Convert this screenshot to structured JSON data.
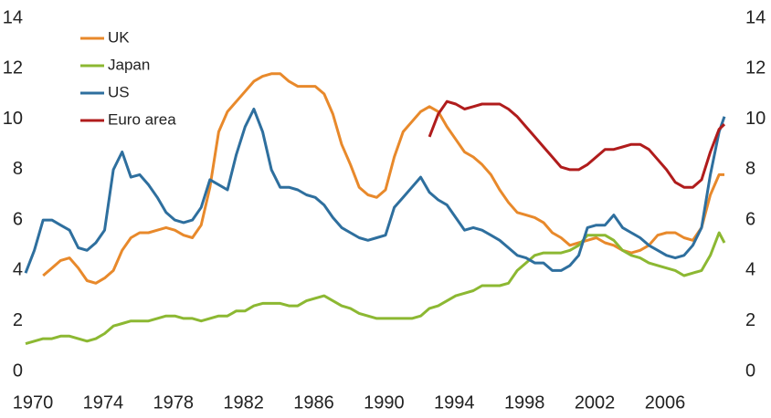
{
  "chart_data": {
    "type": "line",
    "x": [
      1970,
      1970.5,
      1971,
      1971.5,
      1972,
      1972.5,
      1973,
      1973.5,
      1974,
      1974.5,
      1975,
      1975.5,
      1976,
      1976.5,
      1977,
      1977.5,
      1978,
      1978.5,
      1979,
      1979.5,
      1980,
      1980.5,
      1981,
      1981.5,
      1982,
      1982.5,
      1983,
      1983.5,
      1984,
      1984.5,
      1985,
      1985.5,
      1986,
      1986.5,
      1987,
      1987.5,
      1988,
      1988.5,
      1989,
      1989.5,
      1990,
      1990.5,
      1991,
      1991.5,
      1992,
      1992.5,
      1993,
      1993.5,
      1994,
      1994.5,
      1995,
      1995.5,
      1996,
      1996.5,
      1997,
      1997.5,
      1998,
      1998.5,
      1999,
      1999.5,
      2000,
      2000.5,
      2001,
      2001.5,
      2002,
      2002.5,
      2003,
      2003.5,
      2004,
      2004.5,
      2005,
      2005.5,
      2006,
      2006.5,
      2007,
      2007.5,
      2008,
      2008.5,
      2009,
      2009.5,
      2009.8
    ],
    "series": [
      {
        "name": "UK",
        "color": "#e8892b",
        "values": [
          null,
          null,
          3.8,
          4.1,
          4.4,
          4.5,
          4.1,
          3.6,
          3.5,
          3.7,
          4.0,
          4.8,
          5.3,
          5.5,
          5.5,
          5.6,
          5.7,
          5.6,
          5.4,
          5.3,
          5.8,
          7.3,
          9.5,
          10.3,
          10.7,
          11.1,
          11.5,
          11.7,
          11.8,
          11.8,
          11.5,
          11.3,
          11.3,
          11.3,
          11.0,
          10.2,
          9.0,
          8.2,
          7.3,
          7.0,
          6.9,
          7.2,
          8.5,
          9.5,
          9.9,
          10.3,
          10.5,
          10.3,
          9.7,
          9.2,
          8.7,
          8.5,
          8.2,
          7.8,
          7.2,
          6.7,
          6.3,
          6.2,
          6.1,
          5.9,
          5.5,
          5.3,
          5.0,
          5.1,
          5.2,
          5.3,
          5.1,
          5.0,
          4.8,
          4.7,
          4.8,
          5.0,
          5.4,
          5.5,
          5.5,
          5.3,
          5.2,
          5.7,
          7.0,
          7.8,
          7.8
        ]
      },
      {
        "name": "Japan",
        "color": "#8cb832",
        "values": [
          1.1,
          1.2,
          1.3,
          1.3,
          1.4,
          1.4,
          1.3,
          1.2,
          1.3,
          1.5,
          1.8,
          1.9,
          2.0,
          2.0,
          2.0,
          2.1,
          2.2,
          2.2,
          2.1,
          2.1,
          2.0,
          2.1,
          2.2,
          2.2,
          2.4,
          2.4,
          2.6,
          2.7,
          2.7,
          2.7,
          2.6,
          2.6,
          2.8,
          2.9,
          3.0,
          2.8,
          2.6,
          2.5,
          2.3,
          2.2,
          2.1,
          2.1,
          2.1,
          2.1,
          2.1,
          2.2,
          2.5,
          2.6,
          2.8,
          3.0,
          3.1,
          3.2,
          3.4,
          3.4,
          3.4,
          3.5,
          4.0,
          4.3,
          4.6,
          4.7,
          4.7,
          4.7,
          4.8,
          5.0,
          5.4,
          5.4,
          5.4,
          5.2,
          4.8,
          4.6,
          4.5,
          4.3,
          4.2,
          4.1,
          4.0,
          3.8,
          3.9,
          4.0,
          4.6,
          5.5,
          5.1
        ]
      },
      {
        "name": "US",
        "color": "#2e6f9e",
        "values": [
          3.9,
          4.8,
          6.0,
          6.0,
          5.8,
          5.6,
          4.9,
          4.8,
          5.1,
          5.6,
          8.0,
          8.7,
          7.7,
          7.8,
          7.4,
          6.9,
          6.3,
          6.0,
          5.9,
          6.0,
          6.5,
          7.6,
          7.4,
          7.2,
          8.6,
          9.7,
          10.4,
          9.5,
          8.0,
          7.3,
          7.3,
          7.2,
          7.0,
          6.9,
          6.6,
          6.1,
          5.7,
          5.5,
          5.3,
          5.2,
          5.3,
          5.4,
          6.5,
          6.9,
          7.3,
          7.7,
          7.1,
          6.8,
          6.6,
          6.1,
          5.6,
          5.7,
          5.6,
          5.4,
          5.2,
          4.9,
          4.6,
          4.5,
          4.3,
          4.3,
          4.0,
          4.0,
          4.2,
          4.6,
          5.7,
          5.8,
          5.8,
          6.2,
          5.7,
          5.5,
          5.3,
          5.0,
          4.8,
          4.6,
          4.5,
          4.6,
          5.0,
          5.7,
          7.8,
          9.5,
          10.1
        ]
      },
      {
        "name": "Euro area",
        "color": "#b01c1c",
        "values": [
          null,
          null,
          null,
          null,
          null,
          null,
          null,
          null,
          null,
          null,
          null,
          null,
          null,
          null,
          null,
          null,
          null,
          null,
          null,
          null,
          null,
          null,
          null,
          null,
          null,
          null,
          null,
          null,
          null,
          null,
          null,
          null,
          null,
          null,
          null,
          null,
          null,
          null,
          null,
          null,
          null,
          null,
          null,
          null,
          null,
          null,
          9.3,
          10.2,
          10.7,
          10.6,
          10.4,
          10.5,
          10.6,
          10.6,
          10.6,
          10.4,
          10.1,
          9.7,
          9.3,
          8.9,
          8.5,
          8.1,
          8.0,
          8.0,
          8.2,
          8.5,
          8.8,
          8.8,
          8.9,
          9.0,
          9.0,
          8.8,
          8.4,
          8.0,
          7.5,
          7.3,
          7.3,
          7.6,
          8.7,
          9.6,
          9.8
        ]
      }
    ],
    "xlim": [
      1970,
      2009.8
    ],
    "xticks": [
      1970,
      1974,
      1978,
      1982,
      1986,
      1990,
      1994,
      1998,
      2002,
      2006
    ],
    "ylim": [
      0,
      14
    ],
    "yticks": [
      0,
      2,
      4,
      6,
      8,
      10,
      12,
      14
    ],
    "y2lim": [
      0,
      14
    ],
    "y2ticks": [
      0,
      2,
      4,
      6,
      8,
      10,
      12,
      14
    ],
    "grid": false,
    "legend": "upper-left"
  }
}
